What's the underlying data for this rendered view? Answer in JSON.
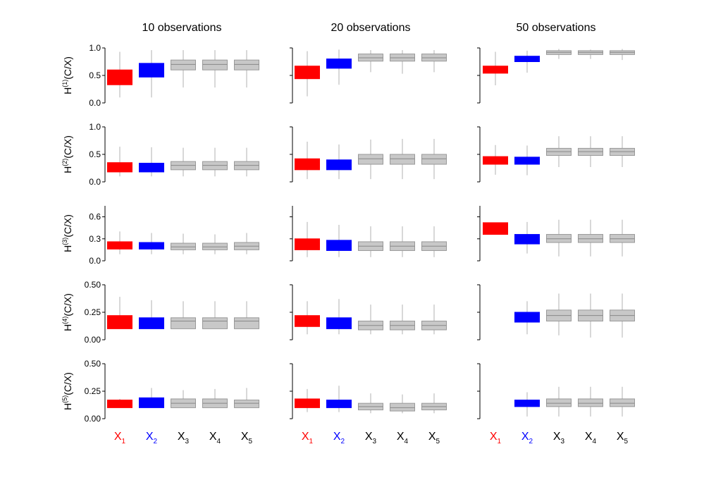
{
  "chart_data": {
    "type": "box",
    "columns": [
      "10 observations",
      "20 observations",
      "50 observations"
    ],
    "categories": [
      {
        "base": "X",
        "sub": "1",
        "color": "#ff0000"
      },
      {
        "base": "X",
        "sub": "2",
        "color": "#0000ff"
      },
      {
        "base": "X",
        "sub": "3",
        "color": "#000000"
      },
      {
        "base": "X",
        "sub": "4",
        "color": "#000000"
      },
      {
        "base": "X",
        "sub": "5",
        "color": "#000000"
      }
    ],
    "box_colors": [
      "#ff0000",
      "#0000ff",
      "#c8c8c8",
      "#c8c8c8",
      "#c8c8c8"
    ],
    "rows": [
      {
        "ylabel": {
          "pre": "H",
          "sup": "(1)",
          "post": "(C/X)"
        },
        "ylim": [
          0,
          1
        ],
        "ticks": [
          "0.0",
          "0.5",
          "1.0"
        ],
        "tick_values": [
          0,
          0.5,
          1.0
        ],
        "panels": [
          [
            [
              0.1,
              0.33,
              0.45,
              0.6,
              0.93
            ],
            [
              0.1,
              0.47,
              0.62,
              0.72,
              0.96
            ],
            [
              0.28,
              0.6,
              0.7,
              0.78,
              0.96
            ],
            [
              0.28,
              0.6,
              0.7,
              0.78,
              0.96
            ],
            [
              0.28,
              0.6,
              0.7,
              0.78,
              0.96
            ]
          ],
          [
            [
              0.12,
              0.44,
              0.56,
              0.67,
              0.94
            ],
            [
              0.33,
              0.63,
              0.72,
              0.8,
              0.97
            ],
            [
              0.56,
              0.76,
              0.82,
              0.89,
              0.96
            ],
            [
              0.53,
              0.76,
              0.82,
              0.89,
              0.96
            ],
            [
              0.56,
              0.76,
              0.82,
              0.89,
              0.96
            ]
          ],
          [
            [
              0.32,
              0.54,
              0.6,
              0.67,
              0.93
            ],
            [
              0.55,
              0.75,
              0.8,
              0.85,
              0.95
            ],
            [
              0.8,
              0.88,
              0.92,
              0.95,
              0.98
            ],
            [
              0.8,
              0.88,
              0.92,
              0.95,
              0.97
            ],
            [
              0.78,
              0.88,
              0.92,
              0.95,
              0.98
            ]
          ]
        ]
      },
      {
        "ylabel": {
          "pre": "H",
          "sup": "(2)",
          "post": "(C/X)"
        },
        "ylim": [
          0,
          1
        ],
        "ticks": [
          "0.0",
          "0.5",
          "1.0"
        ],
        "tick_values": [
          0,
          0.5,
          1.0
        ],
        "panels": [
          [
            [
              0.1,
              0.18,
              0.27,
              0.35,
              0.64
            ],
            [
              0.1,
              0.18,
              0.25,
              0.34,
              0.63
            ],
            [
              0.1,
              0.22,
              0.3,
              0.37,
              0.62
            ],
            [
              0.1,
              0.22,
              0.3,
              0.37,
              0.62
            ],
            [
              0.1,
              0.22,
              0.3,
              0.37,
              0.62
            ]
          ],
          [
            [
              0.05,
              0.22,
              0.32,
              0.42,
              0.73
            ],
            [
              0.05,
              0.22,
              0.3,
              0.4,
              0.68
            ],
            [
              0.05,
              0.32,
              0.42,
              0.5,
              0.77
            ],
            [
              0.05,
              0.32,
              0.42,
              0.5,
              0.78
            ],
            [
              0.05,
              0.32,
              0.42,
              0.5,
              0.78
            ]
          ],
          [
            [
              0.13,
              0.32,
              0.4,
              0.46,
              0.67
            ],
            [
              0.12,
              0.32,
              0.38,
              0.45,
              0.66
            ],
            [
              0.27,
              0.48,
              0.55,
              0.61,
              0.83
            ],
            [
              0.27,
              0.48,
              0.55,
              0.61,
              0.83
            ],
            [
              0.27,
              0.48,
              0.55,
              0.61,
              0.83
            ]
          ]
        ]
      },
      {
        "ylabel": {
          "pre": "H",
          "sup": "(3)",
          "post": "(C/X)"
        },
        "ylim": [
          0,
          0.75
        ],
        "ticks": [
          "0.0",
          "0.3",
          "0.6"
        ],
        "tick_values": [
          0,
          0.3,
          0.6
        ],
        "panels": [
          [
            [
              0.09,
              0.16,
              0.21,
              0.26,
              0.4
            ],
            [
              0.09,
              0.16,
              0.2,
              0.25,
              0.38
            ],
            [
              0.09,
              0.15,
              0.19,
              0.24,
              0.37
            ],
            [
              0.09,
              0.15,
              0.19,
              0.24,
              0.36
            ],
            [
              0.09,
              0.15,
              0.2,
              0.25,
              0.38
            ]
          ],
          [
            [
              0.05,
              0.15,
              0.23,
              0.3,
              0.53
            ],
            [
              0.05,
              0.14,
              0.2,
              0.28,
              0.49
            ],
            [
              0.05,
              0.14,
              0.2,
              0.26,
              0.47
            ],
            [
              0.05,
              0.14,
              0.2,
              0.26,
              0.47
            ],
            [
              0.05,
              0.14,
              0.2,
              0.26,
              0.47
            ]
          ],
          [
            [
              0.36,
              0.36,
              0.45,
              0.52,
              0.52
            ],
            [
              0.1,
              0.23,
              0.3,
              0.36,
              0.53
            ],
            [
              0.06,
              0.25,
              0.3,
              0.36,
              0.56
            ],
            [
              0.06,
              0.25,
              0.3,
              0.36,
              0.56
            ],
            [
              0.06,
              0.25,
              0.3,
              0.36,
              0.56
            ]
          ]
        ]
      },
      {
        "ylabel": {
          "pre": "H",
          "sup": "(4)",
          "post": "(C/X)"
        },
        "ylim": [
          0,
          0.5
        ],
        "ticks": [
          "0.00",
          "0.25",
          "0.50"
        ],
        "tick_values": [
          0,
          0.25,
          0.5
        ],
        "panels": [
          [
            [
              0.1,
              0.1,
              0.16,
              0.22,
              0.39
            ],
            [
              0.1,
              0.1,
              0.15,
              0.2,
              0.36
            ],
            [
              0.1,
              0.1,
              0.17,
              0.2,
              0.35
            ],
            [
              0.1,
              0.1,
              0.17,
              0.2,
              0.35
            ],
            [
              0.1,
              0.1,
              0.17,
              0.2,
              0.35
            ]
          ],
          [
            [
              0.05,
              0.12,
              0.16,
              0.22,
              0.35
            ],
            [
              0.05,
              0.1,
              0.14,
              0.2,
              0.37
            ],
            [
              0.05,
              0.09,
              0.13,
              0.17,
              0.32
            ],
            [
              0.05,
              0.09,
              0.13,
              0.17,
              0.32
            ],
            [
              0.05,
              0.09,
              0.13,
              0.17,
              0.32
            ]
          ],
          [
            null,
            [
              0.05,
              0.16,
              0.2,
              0.25,
              0.35
            ],
            [
              0.04,
              0.17,
              0.22,
              0.27,
              0.42
            ],
            [
              0.02,
              0.17,
              0.22,
              0.27,
              0.42
            ],
            [
              0.02,
              0.17,
              0.22,
              0.27,
              0.42
            ]
          ]
        ]
      },
      {
        "ylabel": {
          "pre": "H",
          "sup": "(5)",
          "post": "(C/X)"
        },
        "ylim": [
          0,
          0.5
        ],
        "ticks": [
          "0.00",
          "0.25",
          "0.50"
        ],
        "tick_values": [
          0,
          0.25,
          0.5
        ],
        "panels": [
          [
            [
              0.1,
              0.1,
              0.13,
              0.17,
              0.18
            ],
            [
              0.1,
              0.1,
              0.14,
              0.19,
              0.28
            ],
            [
              0.1,
              0.1,
              0.14,
              0.18,
              0.26
            ],
            [
              0.1,
              0.1,
              0.14,
              0.18,
              0.27
            ],
            [
              0.1,
              0.1,
              0.14,
              0.17,
              0.28
            ]
          ],
          [
            [
              0.06,
              0.1,
              0.14,
              0.18,
              0.27
            ],
            [
              0.06,
              0.1,
              0.13,
              0.17,
              0.3
            ],
            [
              0.05,
              0.08,
              0.11,
              0.14,
              0.23
            ],
            [
              0.05,
              0.07,
              0.1,
              0.14,
              0.22
            ],
            [
              0.05,
              0.08,
              0.11,
              0.14,
              0.23
            ]
          ],
          [
            null,
            [
              0.02,
              0.11,
              0.14,
              0.17,
              0.24
            ],
            [
              0.02,
              0.11,
              0.14,
              0.18,
              0.29
            ],
            [
              0.02,
              0.11,
              0.14,
              0.18,
              0.29
            ],
            [
              0.02,
              0.11,
              0.14,
              0.18,
              0.29
            ]
          ]
        ]
      }
    ]
  }
}
